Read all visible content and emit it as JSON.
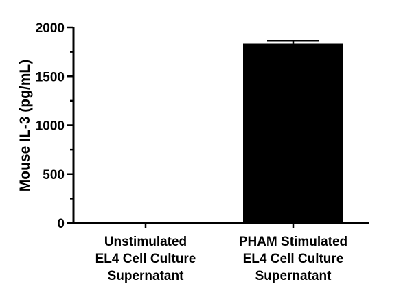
{
  "chart_data": {
    "type": "bar",
    "categories": [
      [
        "Unstimulated",
        "EL4 Cell Culture",
        "Supernatant"
      ],
      [
        "PHAM Stimulated",
        "EL4 Cell Culture",
        "Supernatant"
      ]
    ],
    "values": [
      3,
      1835
    ],
    "errors": [
      0,
      30
    ],
    "ylabel": "Mouse IL-3 (pg/mL)",
    "xlabel": "",
    "title": "",
    "ylim": [
      0,
      2000
    ],
    "yticks": [
      0,
      500,
      1000,
      1500,
      2000
    ],
    "y_minor_step": 250,
    "bar_color": "#000000",
    "grid": false
  }
}
